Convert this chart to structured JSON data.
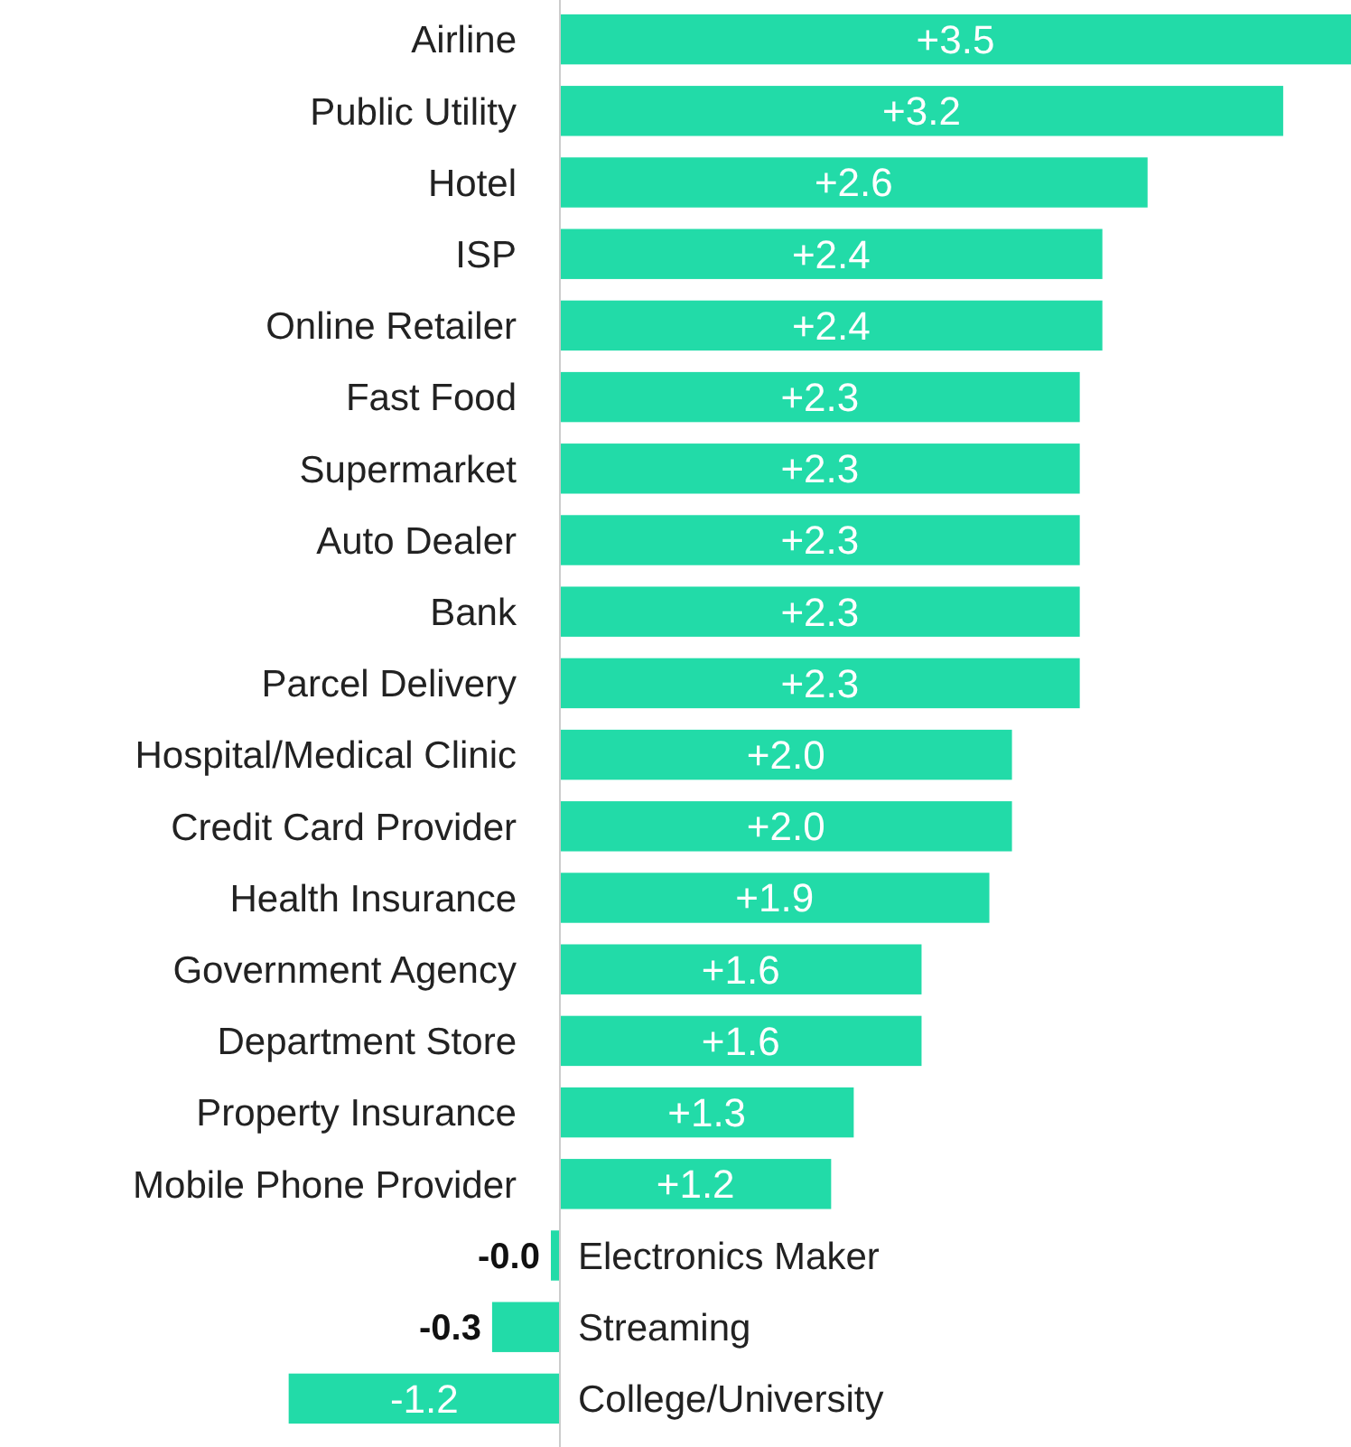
{
  "chart_data": {
    "type": "bar",
    "orientation": "horizontal",
    "color": "#22dba8",
    "categories": [
      "Airline",
      "Public Utility",
      "Hotel",
      "ISP",
      "Online Retailer",
      "Fast Food",
      "Supermarket",
      "Auto Dealer",
      "Bank",
      "Parcel Delivery",
      "Hospital/Medical Clinic",
      "Credit Card Provider",
      "Health Insurance",
      "Government Agency",
      "Department Store",
      "Property Insurance",
      "Mobile Phone Provider",
      "Electronics Maker",
      "Streaming",
      "College/University"
    ],
    "values": [
      3.5,
      3.2,
      2.6,
      2.4,
      2.4,
      2.3,
      2.3,
      2.3,
      2.3,
      2.3,
      2.0,
      2.0,
      1.9,
      1.6,
      1.6,
      1.3,
      1.2,
      -0.04,
      -0.3,
      -1.2
    ],
    "value_labels": [
      "+3.5",
      "+3.2",
      "+2.6",
      "+2.4",
      "+2.4",
      "+2.3",
      "+2.3",
      "+2.3",
      "+2.3",
      "+2.3",
      "+2.0",
      "+2.0",
      "+1.9",
      "+1.6",
      "+1.6",
      "+1.3",
      "+1.2",
      "-0.0",
      "-0.3",
      "-1.2"
    ]
  }
}
